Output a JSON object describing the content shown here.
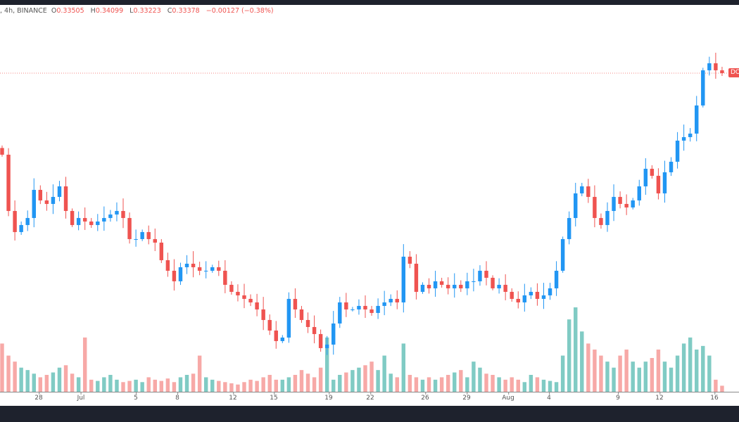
{
  "legend": {
    "symbol": ", 4h, BINANCE",
    "open_label": "O",
    "open": "0.33505",
    "high_label": "H",
    "high": "0.34099",
    "low_label": "L",
    "low": "0.33223",
    "close_label": "C",
    "close": "0.33378",
    "change": "−0.00127 (−0.38%)"
  },
  "price_label": "DO",
  "x_axis": [
    "28",
    "Jul",
    "5",
    "8",
    "12",
    "15",
    "19",
    "22",
    "26",
    "29",
    "Aug",
    "4",
    "9",
    "12",
    "16"
  ],
  "colors": {
    "up": "#2196f3",
    "down": "#ef5350",
    "vol_up": "#80cbc4",
    "vol_down": "#f7a9a7",
    "last_price_line": "#ef5350"
  },
  "chart_data": {
    "type": "candlestick",
    "interval": "4h",
    "last_price": 0.33378,
    "closes": [
      0.2851,
      0.2515,
      0.2389,
      0.2431,
      0.2473,
      0.2641,
      0.2578,
      0.2557,
      0.2599,
      0.2662,
      0.2515,
      0.2431,
      0.2473,
      0.2452,
      0.2431,
      0.2452,
      0.2473,
      0.2494,
      0.2515,
      0.2473,
      0.2347,
      0.2347,
      0.2389,
      0.2347,
      0.2326,
      0.2221,
      0.2158,
      0.2095,
      0.2179,
      0.22,
      0.2179,
      0.2158,
      0.2158,
      0.2179,
      0.2158,
      0.2074,
      0.2032,
      0.2011,
      0.199,
      0.1969,
      0.1927,
      0.1864,
      0.1801,
      0.1738,
      0.1759,
      0.199,
      0.1927,
      0.1864,
      0.1822,
      0.178,
      0.1696,
      0.1717,
      0.1843,
      0.1969,
      0.1927,
      0.1927,
      0.1948,
      0.1927,
      0.1906,
      0.1948,
      0.1969,
      0.199,
      0.1969,
      0.2242,
      0.22,
      0.2032,
      0.2074,
      0.2053,
      0.2095,
      0.2074,
      0.2053,
      0.2074,
      0.2053,
      0.2095,
      0.2095,
      0.2158,
      0.2116,
      0.2053,
      0.2074,
      0.2032,
      0.199,
      0.1969,
      0.2011,
      0.2032,
      0.199,
      0.2011,
      0.2053,
      0.2158,
      0.2347,
      0.2473,
      0.262,
      0.2662,
      0.2599,
      0.2473,
      0.2431,
      0.2515,
      0.2599,
      0.2557,
      0.2536,
      0.2578,
      0.2662,
      0.2767,
      0.2725,
      0.262,
      0.2746,
      0.2809,
      0.2935,
      0.2956,
      0.2977,
      0.3145,
      0.3355,
      0.3397,
      0.3355,
      0.3338
    ],
    "volumes": [
      40,
      30,
      25,
      20,
      18,
      15,
      12,
      14,
      16,
      20,
      22,
      15,
      12,
      45,
      10,
      9,
      12,
      14,
      10,
      8,
      9,
      10,
      8,
      12,
      10,
      9,
      11,
      8,
      12,
      14,
      15,
      30,
      12,
      10,
      9,
      8,
      7,
      6,
      8,
      10,
      9,
      12,
      14,
      10,
      10,
      12,
      14,
      18,
      15,
      12,
      20,
      45,
      10,
      14,
      16,
      18,
      20,
      22,
      25,
      18,
      30,
      15,
      12,
      40,
      14,
      12,
      10,
      12,
      10,
      12,
      14,
      16,
      18,
      12,
      25,
      20,
      15,
      14,
      12,
      10,
      12,
      10,
      8,
      14,
      12,
      10,
      9,
      8,
      30,
      60,
      70,
      50,
      40,
      35,
      30,
      25,
      20,
      30,
      35,
      25,
      20,
      25,
      28,
      35,
      25,
      20,
      30,
      40,
      45,
      35,
      38,
      30,
      10,
      5
    ]
  }
}
